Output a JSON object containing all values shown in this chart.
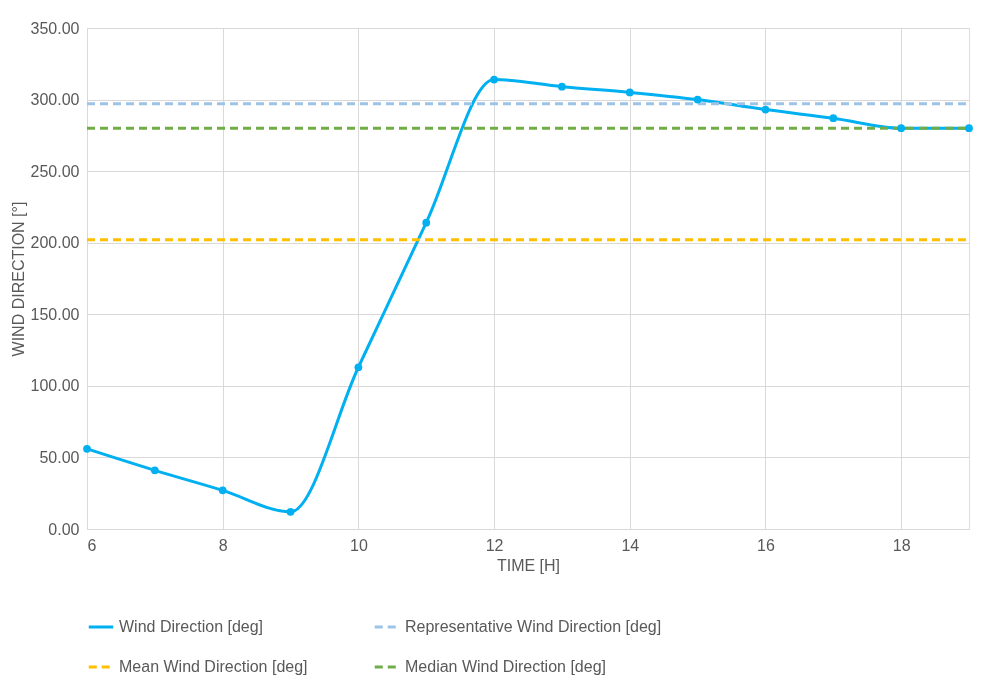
{
  "chart_data": {
    "type": "line",
    "xlabel": "TIME [H]",
    "ylabel": "WIND DIRECTION [°]",
    "xlim": [
      6,
      19
    ],
    "xticks": [
      6,
      8,
      10,
      12,
      14,
      16,
      18
    ],
    "ylim": [
      0,
      350
    ],
    "yticks": [
      {
        "value": 0,
        "label": "0.00"
      },
      {
        "value": 50,
        "label": "50.00"
      },
      {
        "value": 100,
        "label": "100.00"
      },
      {
        "value": 150,
        "label": "150.00"
      },
      {
        "value": 200,
        "label": "200.00"
      },
      {
        "value": 250,
        "label": "250.00"
      },
      {
        "value": 300,
        "label": "300.00"
      },
      {
        "value": 350,
        "label": "350.00"
      }
    ],
    "grid": true,
    "legend": "bottom",
    "series": [
      {
        "name": "Wind Direction [deg]",
        "color": "#00b0f0",
        "marker": "circle",
        "line_style": "solid",
        "x": [
          6,
          7,
          8,
          9,
          10,
          11,
          12,
          13,
          14,
          15,
          16,
          17,
          18,
          19
        ],
        "values": [
          56,
          41,
          27,
          12,
          113,
          214,
          314,
          309,
          305,
          300,
          293,
          287,
          280,
          280
        ]
      },
      {
        "name": "Representative Wind Direction [deg]",
        "color": "#9dc3e6",
        "marker": "none",
        "line_style": "dashed",
        "x": [
          6,
          19
        ],
        "values": [
          297,
          297
        ]
      },
      {
        "name": "Mean Wind Direction [deg]",
        "color": "#ffc000",
        "marker": "none",
        "line_style": "dashed",
        "x": [
          6,
          19
        ],
        "values": [
          202,
          202
        ]
      },
      {
        "name": "Median Wind Direction [deg]",
        "color": "#70ad47",
        "marker": "none",
        "line_style": "dashed",
        "x": [
          6,
          19
        ],
        "values": [
          280,
          280
        ]
      }
    ]
  }
}
